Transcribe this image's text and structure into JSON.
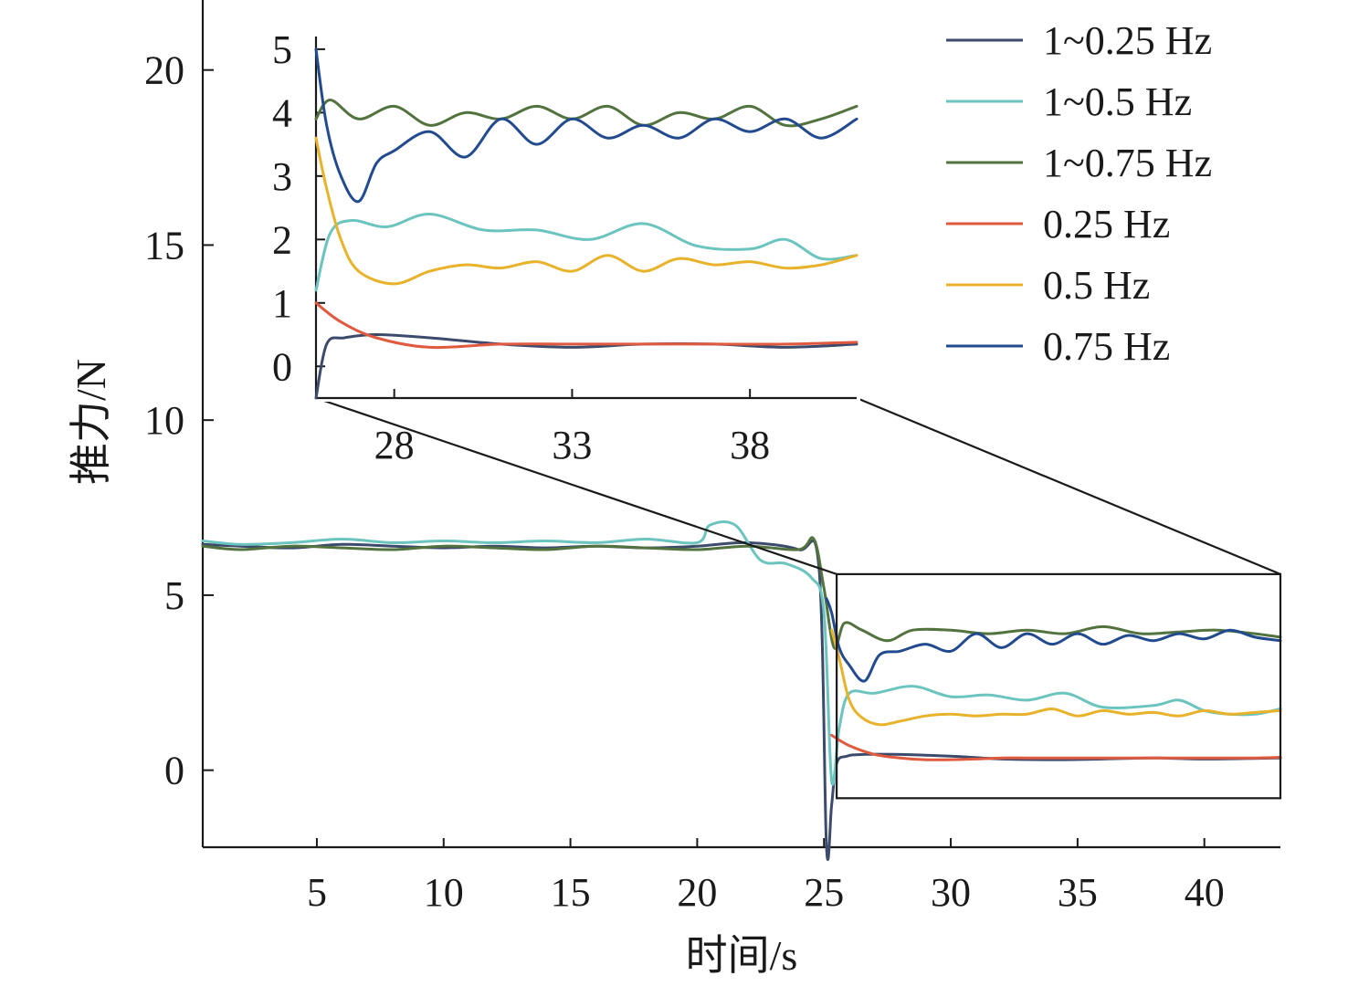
{
  "chart_data": {
    "type": "line",
    "xlabel": "时间/s",
    "ylabel": "推力/N",
    "xlim": [
      0.5,
      43
    ],
    "ylim": [
      -2.2,
      22
    ],
    "xticks": [
      5,
      10,
      15,
      20,
      25,
      30,
      35,
      40
    ],
    "yticks": [
      0,
      5,
      10,
      15,
      20
    ],
    "legend_position": "top-right",
    "series": [
      {
        "name": "1~0.25 Hz",
        "color": "#3c4a6b",
        "x": [
          0.5,
          2,
          4,
          6,
          8,
          10,
          12,
          14,
          16,
          18,
          20,
          22,
          24,
          24.8,
          25.1,
          25.3,
          25.5,
          25.9,
          26.5,
          28,
          30,
          32,
          34,
          36,
          38,
          40,
          43
        ],
        "y": [
          6.45,
          6.4,
          6.35,
          6.45,
          6.4,
          6.35,
          6.4,
          6.35,
          6.4,
          6.35,
          6.4,
          6.5,
          6.3,
          5.8,
          -2.2,
          -1.0,
          0.2,
          0.4,
          0.45,
          0.45,
          0.4,
          0.32,
          0.3,
          0.32,
          0.35,
          0.32,
          0.35
        ]
      },
      {
        "name": "1~0.5 Hz",
        "color": "#6cc4bf",
        "x": [
          0.5,
          2,
          4,
          6,
          8,
          10,
          12,
          14,
          16,
          18,
          20,
          20.5,
          21.5,
          22.5,
          23.5,
          24.5,
          25.0,
          25.3,
          25.6,
          26,
          27,
          28.5,
          30,
          31.5,
          33,
          34.5,
          36,
          38,
          39,
          40,
          41,
          42,
          43
        ],
        "y": [
          6.55,
          6.45,
          6.5,
          6.6,
          6.5,
          6.55,
          6.5,
          6.55,
          6.5,
          6.6,
          6.5,
          7.0,
          7.0,
          6.0,
          5.9,
          5.5,
          4.5,
          -0.3,
          1.2,
          2.2,
          2.2,
          2.4,
          2.1,
          2.15,
          2.0,
          2.2,
          1.8,
          1.85,
          2.0,
          1.7,
          1.6,
          1.6,
          1.75
        ]
      },
      {
        "name": "1~0.75 Hz",
        "color": "#52723e",
        "x": [
          0.5,
          2,
          4,
          6,
          8,
          10,
          12,
          14,
          16,
          18,
          20,
          22,
          24,
          24.6,
          25.0,
          25.4,
          25.8,
          26.5,
          27.5,
          28.5,
          30,
          31.5,
          33,
          34.5,
          36,
          37.5,
          39,
          40.5,
          42,
          43
        ],
        "y": [
          6.4,
          6.3,
          6.4,
          6.35,
          6.3,
          6.4,
          6.35,
          6.3,
          6.4,
          6.35,
          6.3,
          6.4,
          6.3,
          6.6,
          5.2,
          3.5,
          4.2,
          4.0,
          3.7,
          4.0,
          4.0,
          3.9,
          4.0,
          3.9,
          4.1,
          3.9,
          3.95,
          4.0,
          3.9,
          3.8
        ]
      },
      {
        "name": "0.25 Hz",
        "color": "#e05a3f",
        "x": [
          25.3,
          26,
          27,
          28,
          29,
          30,
          31,
          32,
          33,
          34,
          35,
          36,
          37,
          38,
          39,
          40,
          41,
          42,
          43
        ],
        "y": [
          1.0,
          0.7,
          0.45,
          0.35,
          0.3,
          0.3,
          0.32,
          0.35,
          0.35,
          0.35,
          0.35,
          0.35,
          0.35,
          0.35,
          0.35,
          0.35,
          0.35,
          0.35,
          0.37
        ]
      },
      {
        "name": "0.5 Hz",
        "color": "#e8b22b",
        "x": [
          25.3,
          25.6,
          26,
          26.5,
          27.2,
          28,
          29,
          30,
          31,
          32,
          33,
          34,
          35,
          36,
          37,
          38,
          39,
          40,
          41,
          42,
          43
        ],
        "y": [
          4.0,
          3.2,
          2.0,
          1.5,
          1.3,
          1.4,
          1.55,
          1.6,
          1.55,
          1.6,
          1.6,
          1.75,
          1.55,
          1.7,
          1.6,
          1.65,
          1.55,
          1.7,
          1.6,
          1.65,
          1.7
        ]
      },
      {
        "name": "0.75 Hz",
        "color": "#224a8e",
        "x": [
          25.1,
          25.3,
          25.6,
          26,
          26.6,
          27.2,
          28,
          29,
          30,
          31,
          32,
          33,
          34,
          35,
          36,
          37,
          38,
          39,
          40,
          41,
          42,
          43
        ],
        "y": [
          4.9,
          4.5,
          3.5,
          3.0,
          2.55,
          3.3,
          3.4,
          3.6,
          3.4,
          3.9,
          3.5,
          3.9,
          3.6,
          3.9,
          3.6,
          3.85,
          3.7,
          3.9,
          3.75,
          4.0,
          3.8,
          3.7
        ]
      }
    ],
    "inset": {
      "xlim": [
        25.8,
        41
      ],
      "ylim": [
        -0.5,
        5.2
      ],
      "xticks": [
        28,
        33,
        38
      ],
      "yticks": [
        0,
        1,
        2,
        3,
        4,
        5
      ],
      "source_region": {
        "x": [
          25.5,
          43
        ],
        "y": [
          -0.8,
          5.6
        ]
      },
      "series": [
        {
          "name": "1~0.25 Hz",
          "color": "#3c4a6b",
          "x": [
            25.8,
            26.1,
            26.6,
            27.5,
            29,
            31,
            33,
            35,
            37,
            39,
            41
          ],
          "y": [
            -0.5,
            0.35,
            0.45,
            0.5,
            0.45,
            0.35,
            0.3,
            0.35,
            0.35,
            0.3,
            0.35
          ]
        },
        {
          "name": "1~0.5 Hz",
          "color": "#6cc4bf",
          "x": [
            25.8,
            26.2,
            26.8,
            27.8,
            29,
            30.5,
            32,
            33.5,
            35,
            36.5,
            38,
            39,
            40,
            41
          ],
          "y": [
            1.2,
            2.1,
            2.3,
            2.2,
            2.4,
            2.15,
            2.15,
            2.0,
            2.25,
            1.9,
            1.85,
            2.0,
            1.7,
            1.75
          ]
        },
        {
          "name": "1~0.75 Hz",
          "color": "#52723e",
          "x": [
            25.8,
            26.2,
            27,
            28,
            29,
            30,
            31,
            32,
            33,
            34,
            35,
            36,
            37,
            38,
            39,
            40,
            41
          ],
          "y": [
            3.9,
            4.2,
            3.9,
            4.1,
            3.8,
            4.0,
            3.9,
            4.1,
            3.9,
            4.1,
            3.8,
            4.0,
            3.9,
            4.1,
            3.8,
            3.9,
            4.1
          ]
        },
        {
          "name": "0.25 Hz",
          "color": "#e05a3f",
          "x": [
            25.8,
            26.5,
            27.5,
            29,
            31,
            33,
            35,
            37,
            39,
            41
          ],
          "y": [
            1.0,
            0.7,
            0.45,
            0.3,
            0.35,
            0.35,
            0.35,
            0.35,
            0.35,
            0.38
          ]
        },
        {
          "name": "0.5 Hz",
          "color": "#e8b22b",
          "x": [
            25.8,
            26.1,
            26.5,
            27,
            28,
            29,
            30,
            31,
            32,
            33,
            34,
            35,
            36,
            37,
            38,
            39,
            40,
            41
          ],
          "y": [
            3.6,
            2.8,
            2.0,
            1.5,
            1.3,
            1.5,
            1.6,
            1.55,
            1.65,
            1.5,
            1.75,
            1.5,
            1.7,
            1.6,
            1.65,
            1.55,
            1.6,
            1.75
          ]
        },
        {
          "name": "0.75 Hz",
          "color": "#224a8e",
          "x": [
            25.8,
            26.1,
            26.5,
            27,
            27.5,
            28,
            29,
            30,
            31,
            32,
            33,
            34,
            35,
            36,
            37,
            38,
            39,
            40,
            41
          ],
          "y": [
            5.0,
            3.8,
            3.0,
            2.6,
            3.2,
            3.4,
            3.7,
            3.3,
            3.9,
            3.5,
            3.9,
            3.6,
            3.8,
            3.6,
            3.9,
            3.7,
            3.9,
            3.6,
            3.9
          ]
        }
      ]
    }
  }
}
